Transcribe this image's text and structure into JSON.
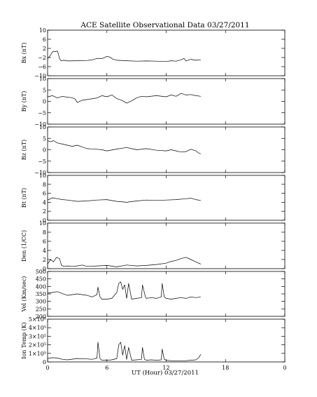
{
  "figure": {
    "title": "ACE Satellite Observational Data   03/27/2011"
  },
  "chart_data": {
    "type": "line",
    "title": "ACE Satellite Observational Data   03/27/2011",
    "xlabel": "UT (Hour)  03/27/2011",
    "xlim": [
      0,
      24
    ],
    "x_ticks": [
      "0",
      "6",
      "12",
      "18",
      "0"
    ],
    "x_tick_values": [
      0,
      6,
      12,
      18,
      24
    ],
    "data_end_hour": 15.5,
    "grid": false,
    "panels": [
      {
        "id": "bx",
        "ylabel": "Bx (nT)",
        "ylim": [
          -10,
          10
        ],
        "y_ticks": [
          "10",
          "6",
          "2",
          "−2",
          "−6",
          "−10"
        ],
        "y_tick_values": [
          10,
          6,
          2,
          -2,
          -6,
          -10
        ],
        "x": [
          0,
          0.3,
          0.45,
          0.5,
          1.0,
          1.1,
          1.2,
          1.4,
          1.6,
          2.0,
          3.0,
          4.0,
          4.5,
          5.0,
          5.5,
          6.0,
          6.3,
          6.6,
          7.0,
          8.0,
          9.0,
          10.0,
          11.0,
          12.0,
          12.5,
          13.0,
          13.5,
          13.8,
          14.0,
          14.5,
          15.0,
          15.5
        ],
        "y": [
          -2.5,
          -1.0,
          0.3,
          0.5,
          0.8,
          -0.5,
          -2.5,
          -3.5,
          -3.2,
          -3.5,
          -3.4,
          -3.3,
          -3.0,
          -2.4,
          -2.5,
          -1.5,
          -1.8,
          -2.7,
          -3.2,
          -3.4,
          -3.6,
          -3.5,
          -3.6,
          -3.8,
          -3.4,
          -3.6,
          -3.0,
          -2.4,
          -3.5,
          -2.8,
          -3.2,
          -3.0
        ]
      },
      {
        "id": "by",
        "ylabel": "By (nT)",
        "ylim": [
          -10,
          10
        ],
        "y_ticks": [
          "10",
          "5",
          "0",
          "−5",
          "−10"
        ],
        "y_tick_values": [
          10,
          5,
          0,
          -5,
          -10
        ],
        "x": [
          0,
          0.5,
          1.0,
          1.5,
          2.0,
          2.5,
          2.8,
          3.0,
          3.5,
          4.0,
          5.0,
          5.5,
          6.0,
          6.5,
          7.0,
          7.5,
          8.0,
          8.5,
          9.0,
          9.5,
          10.0,
          11.0,
          12.0,
          12.5,
          13.0,
          13.5,
          14.0,
          14.5,
          15.0,
          15.5
        ],
        "y": [
          2.0,
          2.5,
          1.5,
          2.2,
          1.8,
          1.6,
          1.0,
          -0.5,
          0.5,
          0.8,
          1.5,
          2.5,
          2.0,
          2.8,
          1.2,
          0.5,
          -0.8,
          0.2,
          1.5,
          2.2,
          2.0,
          2.5,
          2.0,
          2.8,
          2.2,
          3.5,
          2.8,
          3.0,
          2.5,
          2.2
        ]
      },
      {
        "id": "bz",
        "ylabel": "Bz (nT)",
        "ylim": [
          -10,
          10
        ],
        "y_ticks": [
          "10",
          "5",
          "0",
          "−5",
          "−10"
        ],
        "y_tick_values": [
          10,
          5,
          0,
          -5,
          -10
        ],
        "x": [
          0,
          0.3,
          0.6,
          1.0,
          1.5,
          2.0,
          2.5,
          3.0,
          3.5,
          4.0,
          5.0,
          5.5,
          6.0,
          7.0,
          8.0,
          8.5,
          9.0,
          10.0,
          11.0,
          12.0,
          12.5,
          13.0,
          13.5,
          14.0,
          14.5,
          15.0,
          15.3,
          15.5
        ],
        "y": [
          4.0,
          3.5,
          4.0,
          3.0,
          2.5,
          2.0,
          1.5,
          2.0,
          1.2,
          0.5,
          0.2,
          0.0,
          -0.5,
          0.3,
          1.0,
          0.5,
          0.0,
          0.5,
          -0.2,
          -0.5,
          0.0,
          -0.5,
          -1.0,
          -0.8,
          0.2,
          -0.5,
          -1.5,
          -1.8
        ]
      },
      {
        "id": "bt",
        "ylabel": "Bt (nT)",
        "ylim": [
          0,
          10
        ],
        "y_ticks": [
          "10",
          "8",
          "6",
          "4",
          "2",
          "0"
        ],
        "y_tick_values": [
          10,
          8,
          6,
          4,
          2,
          0
        ],
        "x": [
          0,
          0.5,
          1.0,
          1.5,
          2.0,
          3.0,
          4.0,
          5.0,
          6.0,
          7.0,
          8.0,
          9.0,
          10.0,
          11.0,
          12.0,
          13.0,
          14.0,
          14.5,
          15.0,
          15.5
        ],
        "y": [
          4.5,
          5.0,
          4.8,
          4.6,
          4.5,
          4.2,
          4.3,
          4.5,
          4.6,
          4.2,
          4.0,
          4.3,
          4.5,
          4.4,
          4.5,
          4.6,
          4.8,
          4.9,
          4.6,
          4.4
        ]
      },
      {
        "id": "den",
        "ylabel": "Den (1/CC)",
        "ylim": [
          0,
          10
        ],
        "y_ticks": [
          "10",
          "8",
          "6",
          "4",
          "2",
          "0"
        ],
        "y_tick_values": [
          10,
          8,
          6,
          4,
          2,
          0
        ],
        "x": [
          0,
          0.3,
          0.6,
          0.9,
          1.2,
          1.4,
          1.6,
          2.0,
          2.5,
          3.0,
          3.5,
          4.0,
          5.0,
          6.0,
          7.0,
          8.0,
          9.0,
          10.0,
          11.0,
          12.0,
          12.5,
          13.0,
          13.5,
          14.0,
          14.5,
          15.0,
          15.5
        ],
        "y": [
          1.0,
          2.0,
          1.5,
          2.5,
          2.2,
          0.8,
          0.5,
          0.6,
          0.5,
          0.6,
          0.8,
          0.5,
          0.6,
          0.7,
          0.4,
          0.8,
          0.6,
          0.7,
          0.9,
          1.2,
          1.6,
          1.8,
          2.2,
          2.5,
          2.0,
          1.5,
          1.0
        ]
      },
      {
        "id": "vel",
        "ylabel": "Vel (Km/sec)",
        "ylim": [
          200,
          500
        ],
        "y_ticks": [
          "500",
          "450",
          "400",
          "350",
          "300",
          "250",
          "200"
        ],
        "y_tick_values": [
          500,
          450,
          400,
          350,
          300,
          250,
          200
        ],
        "x": [
          0,
          0.5,
          1.0,
          1.5,
          2.0,
          3.0,
          4.0,
          4.5,
          5.0,
          5.1,
          5.3,
          5.5,
          6.0,
          6.5,
          7.0,
          7.2,
          7.4,
          7.6,
          7.8,
          8.0,
          8.2,
          8.5,
          9.0,
          9.5,
          9.6,
          9.9,
          10.0,
          10.5,
          11.0,
          11.5,
          11.6,
          11.8,
          12.0,
          12.5,
          13.0,
          13.5,
          14.0,
          14.5,
          15.0,
          15.5
        ],
        "y": [
          355,
          360,
          365,
          352,
          340,
          350,
          340,
          330,
          345,
          395,
          330,
          315,
          315,
          320,
          360,
          420,
          430,
          380,
          410,
          320,
          420,
          315,
          320,
          325,
          410,
          330,
          320,
          325,
          320,
          330,
          420,
          330,
          320,
          315,
          320,
          325,
          320,
          330,
          325,
          330
        ]
      },
      {
        "id": "temp",
        "ylabel": "Ion Temp (K)",
        "ylim": [
          0,
          500000
        ],
        "y_ticks": [
          "5×10⁵",
          "4×10⁵",
          "3×10⁵",
          "2×10⁵",
          "1×10⁵",
          "0"
        ],
        "y_tick_values": [
          500000,
          400000,
          300000,
          200000,
          100000,
          0
        ],
        "x": [
          0,
          0.5,
          1.0,
          1.5,
          2.0,
          3.0,
          4.0,
          4.5,
          5.0,
          5.1,
          5.3,
          5.5,
          6.0,
          6.5,
          7.0,
          7.2,
          7.4,
          7.6,
          7.8,
          8.0,
          8.2,
          8.5,
          9.0,
          9.5,
          9.6,
          9.8,
          10.0,
          10.5,
          11.0,
          11.5,
          11.6,
          11.8,
          12.0,
          12.5,
          13.0,
          14.0,
          14.5,
          15.0,
          15.3,
          15.5
        ],
        "y": [
          40000,
          50000,
          45000,
          30000,
          25000,
          40000,
          35000,
          30000,
          45000,
          230000,
          40000,
          20000,
          20000,
          25000,
          40000,
          200000,
          230000,
          80000,
          190000,
          30000,
          170000,
          20000,
          25000,
          30000,
          170000,
          30000,
          20000,
          25000,
          20000,
          25000,
          150000,
          30000,
          20000,
          15000,
          15000,
          15000,
          20000,
          25000,
          50000,
          90000
        ]
      }
    ]
  }
}
